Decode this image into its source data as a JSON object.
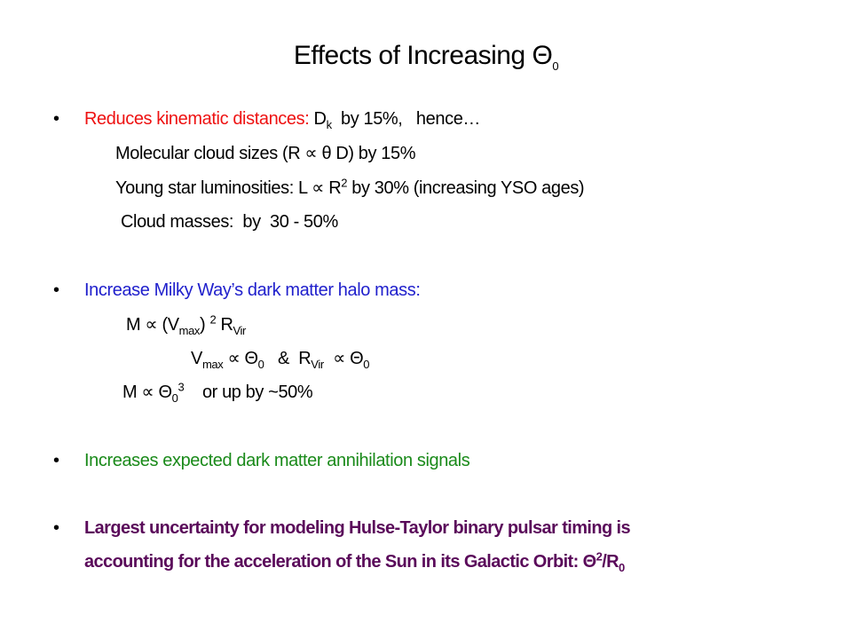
{
  "title": {
    "text": "Effects of Increasing ",
    "symbol": "Θ",
    "sub": "0"
  },
  "bullet_char": "•",
  "colors": {
    "red": "#ee1111",
    "blue": "#2020cc",
    "green": "#1a8a1a",
    "purple": "#5a0a5a"
  },
  "b1": {
    "lead": "Reduces kinematic distances: ",
    "d": "D",
    "d_sub": "k",
    "rest": "  by 15%,   hence…",
    "l2": "Molecular cloud sizes (R ∝ θ D) by 15%",
    "l3a": "Young star luminosities: L ∝ R",
    "l3_sup": "2",
    "l3b": " by 30% (increasing YSO ages)",
    "l4": "Cloud masses:  by  30 - 50%"
  },
  "b2": {
    "lead": "Increase Milky Way’s dark matter halo mass:",
    "e1a": "M ∝ (V",
    "e1_sub1": "max",
    "e1b": ") ",
    "e1_sup": "2",
    "e1c": " R",
    "e1_sub2": "Vir",
    "e2a": "V",
    "e2_sub1": "max",
    "e2b": " ∝ Θ",
    "e2_sub2": "0",
    "e2c": "   &  R",
    "e2_sub3": "Vir",
    "e2d": "  ∝ Θ",
    "e2_sub4": "0",
    "e3a": "M ∝ Θ",
    "e3_sub": "0",
    "e3_sup": "3",
    "e3b": "    or up by ~50%"
  },
  "b3": {
    "lead": "Increases expected dark matter annihilation signals"
  },
  "b4": {
    "l1": "Largest uncertainty for modeling Hulse-Taylor binary pulsar timing is",
    "l2a": "accounting for the acceleration of the Sun in its Galactic Orbit: Θ",
    "l2_sup": "2",
    "l2b": "/R",
    "l2_sub": "0"
  }
}
